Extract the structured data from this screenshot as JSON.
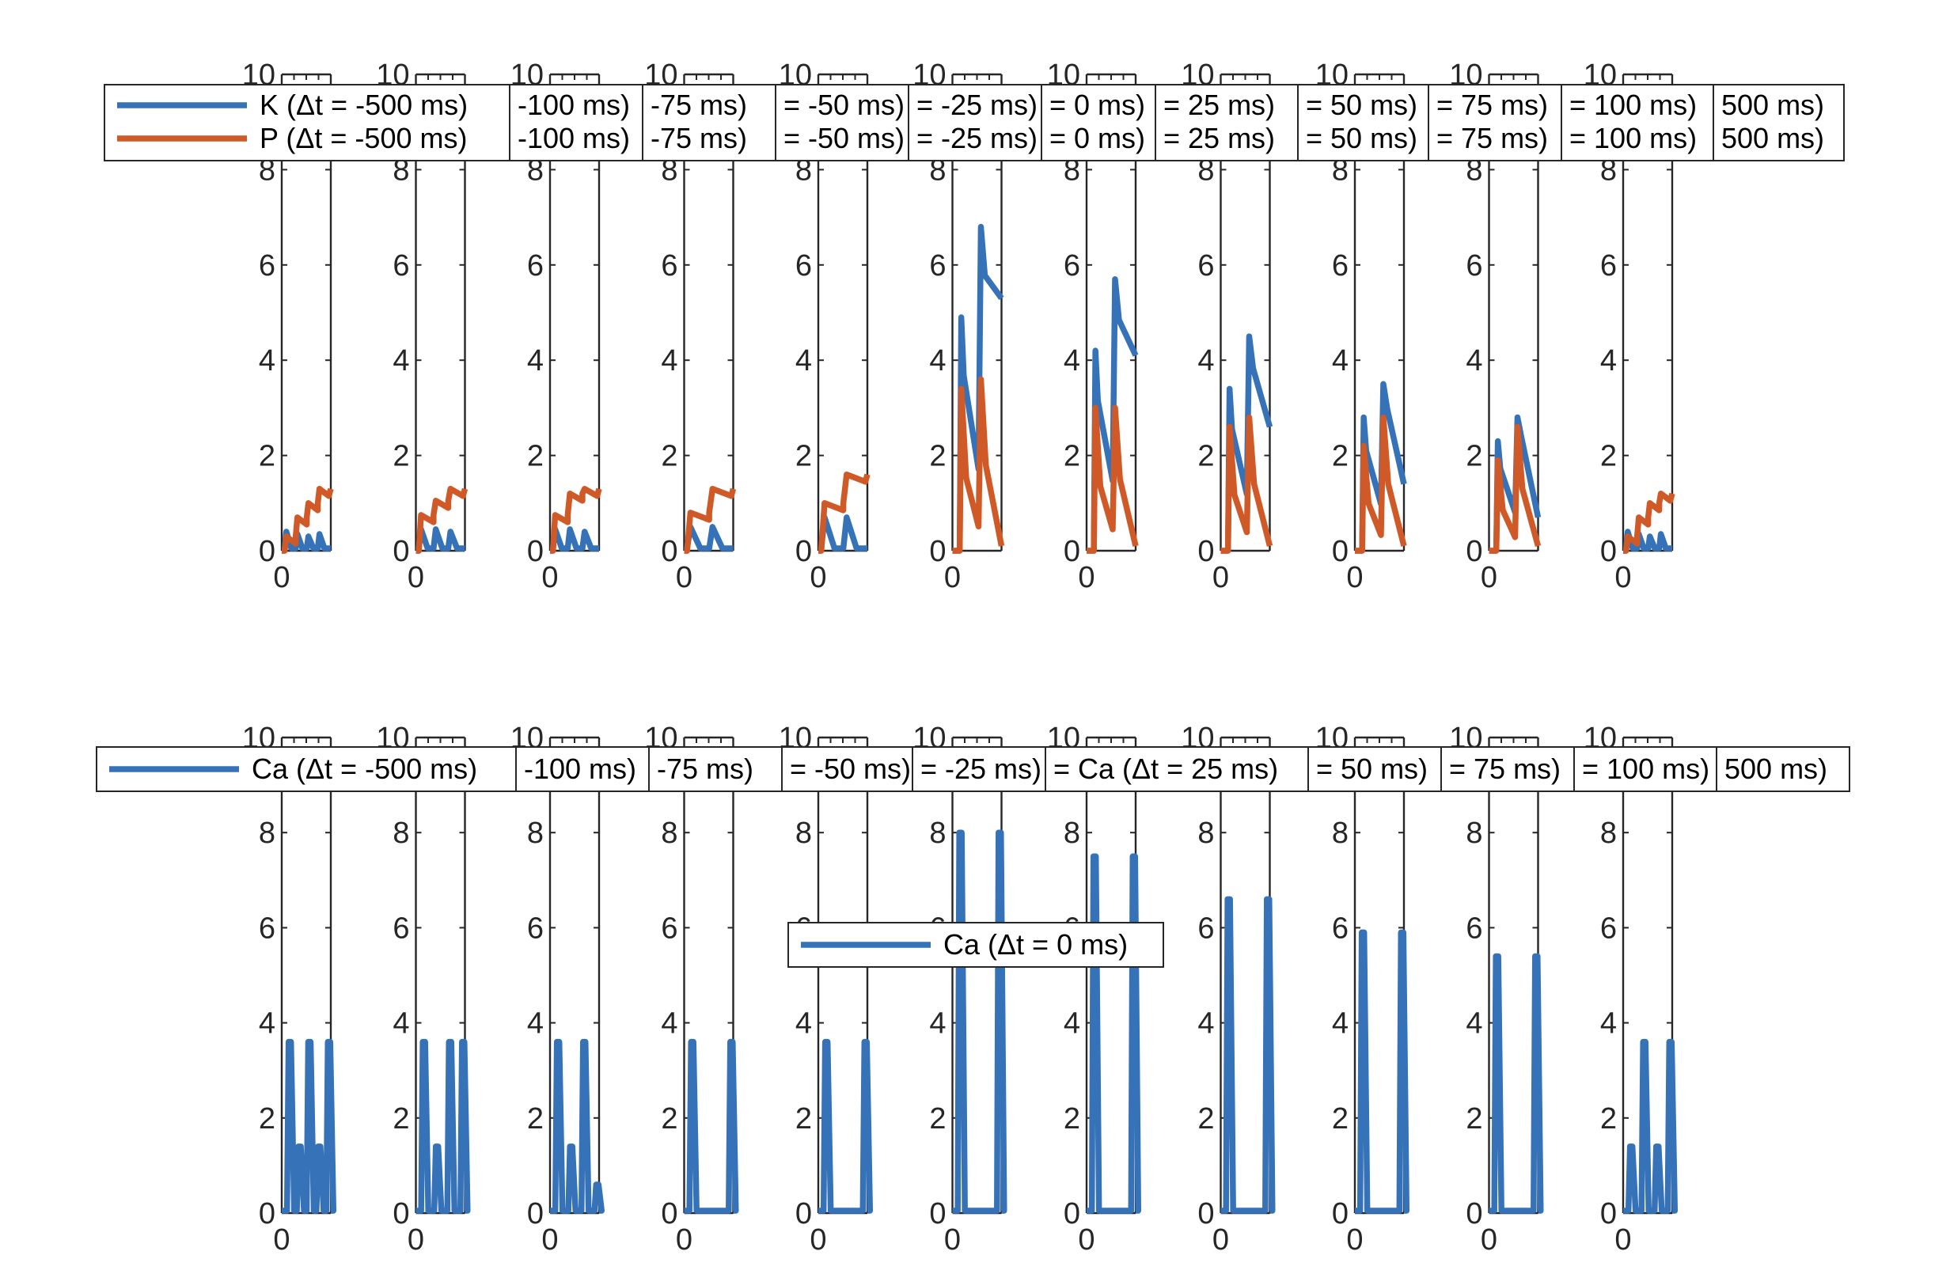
{
  "colors": {
    "k": "#3572b8",
    "p": "#cf5a28",
    "ca": "#3572b8",
    "axis": "#262626",
    "legend_border": "#262626"
  },
  "chart_data": [
    {
      "type": "line",
      "panel_group": "top",
      "ylim": [
        0,
        10
      ],
      "y_ticks": [
        "0",
        "2",
        "4",
        "6",
        "8",
        "10"
      ],
      "x_tick": "0",
      "grid": false,
      "legend_placement": "top",
      "legend_rows": [
        [
          "K (Δt = -500 ms)",
          "-100 ms)",
          "-75 ms)",
          "= -50 ms)",
          "= -25 ms)",
          "= 0 ms)",
          "= 25 ms)",
          "= 50 ms)",
          "= 75 ms)",
          "= 100 ms)",
          "500 ms)"
        ],
        [
          "P (Δt = -500 ms)",
          "-100 ms)",
          "-75 ms)",
          "= -50 ms)",
          "= -25 ms)",
          "= 0 ms)",
          "= 25 ms)",
          "= 50 ms)",
          "= 75 ms)",
          "= 100 ms)",
          "500 ms)"
        ]
      ],
      "panels": [
        {
          "dt_ms": -500,
          "k_peaks": [
            0.4,
            0.35,
            0.3,
            0.35
          ],
          "p_levels": [
            0.3,
            0.7,
            1.0,
            1.3
          ],
          "k_end": 0.05
        },
        {
          "dt_ms": -100,
          "k_peaks": [
            0.45,
            0.45,
            0.4
          ],
          "p_levels": [
            0.75,
            1.05,
            1.3
          ],
          "k_end": 0.05
        },
        {
          "dt_ms": -75,
          "k_peaks": [
            0.45,
            0.45,
            0.4
          ],
          "p_levels": [
            0.75,
            1.2,
            1.3
          ],
          "k_end": 0.05
        },
        {
          "dt_ms": -50,
          "k_peaks": [
            0.5,
            0.5
          ],
          "p_levels": [
            0.8,
            1.3
          ],
          "k_end": 0.05
        },
        {
          "dt_ms": -25,
          "k_peaks": [
            0.7,
            0.7
          ],
          "p_levels": [
            1.0,
            1.6
          ],
          "k_end": 0.05
        },
        {
          "dt_ms": 0,
          "k_peaks": [
            4.9,
            6.8
          ],
          "p_peaks": [
            3.4,
            3.6
          ],
          "k_end": 5.3
        },
        {
          "dt_ms": 25,
          "k_peaks": [
            4.2,
            5.7
          ],
          "p_peaks": [
            3.0,
            3.0
          ],
          "k_end": 4.1
        },
        {
          "dt_ms": 50,
          "k_peaks": [
            3.4,
            4.5
          ],
          "p_peaks": [
            2.6,
            2.8
          ],
          "k_end": 2.6
        },
        {
          "dt_ms": 75,
          "k_peaks": [
            2.8,
            3.5
          ],
          "p_peaks": [
            2.2,
            2.8
          ],
          "k_end": 1.4
        },
        {
          "dt_ms": 100,
          "k_peaks": [
            2.3,
            2.8
          ],
          "p_peaks": [
            1.9,
            2.6
          ],
          "k_end": 0.7
        },
        {
          "dt_ms": 500,
          "k_peaks": [
            0.4,
            0.35,
            0.3,
            0.35
          ],
          "p_levels": [
            0.3,
            0.7,
            1.0,
            1.2
          ],
          "k_end": 0.05
        }
      ]
    },
    {
      "type": "line",
      "panel_group": "bottom",
      "ylim": [
        0,
        10
      ],
      "y_ticks": [
        "0",
        "2",
        "4",
        "6",
        "8",
        "10"
      ],
      "x_tick": "0",
      "grid": false,
      "legend_placement": "top",
      "legend_row": [
        "Ca (Δt = -500 ms)",
        "-100 ms)",
        "-75 ms)",
        "= -50 ms)",
        "= -25 ms)",
        "= Ca (Δt = 25 ms)",
        "= 50 ms)",
        "= 75 ms)",
        "= 100 ms)",
        "500 ms)"
      ],
      "inner_legend": "Ca (Δt = 0 ms)",
      "panels": [
        {
          "dt_ms": -500,
          "ca_peaks": [
            3.6,
            1.4,
            3.6,
            1.4,
            3.6
          ]
        },
        {
          "dt_ms": -100,
          "ca_peaks": [
            3.6,
            1.4,
            3.6,
            3.6
          ]
        },
        {
          "dt_ms": -75,
          "ca_peaks": [
            3.6,
            1.4,
            3.6,
            0.6
          ]
        },
        {
          "dt_ms": -50,
          "ca_peaks": [
            3.6,
            3.6
          ]
        },
        {
          "dt_ms": -25,
          "ca_peaks": [
            3.6,
            3.6
          ]
        },
        {
          "dt_ms": 0,
          "ca_peaks": [
            8.0,
            8.0
          ]
        },
        {
          "dt_ms": 25,
          "ca_peaks": [
            7.5,
            7.5
          ]
        },
        {
          "dt_ms": 50,
          "ca_peaks": [
            6.6,
            6.6
          ]
        },
        {
          "dt_ms": 75,
          "ca_peaks": [
            5.9,
            5.9
          ]
        },
        {
          "dt_ms": 100,
          "ca_peaks": [
            5.4,
            5.4
          ]
        },
        {
          "dt_ms": 500,
          "ca_peaks": [
            1.4,
            3.6,
            1.4,
            3.6
          ]
        }
      ]
    }
  ]
}
